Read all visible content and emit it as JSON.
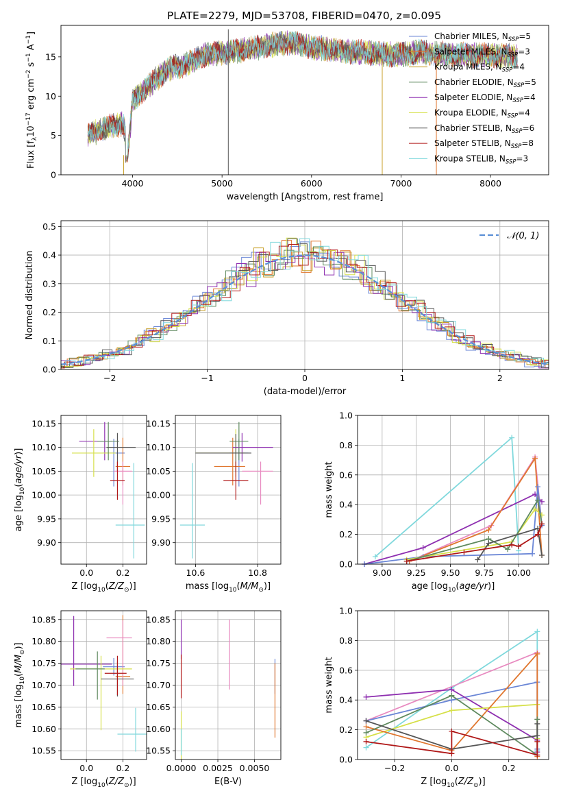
{
  "figure_title": "PLATE=2279, MJD=53708, FIBERID=0470, z=0.095",
  "legend": [
    {
      "prefix": "Chabrier MILES, N",
      "sub": "SSP",
      "suffix": "=5",
      "color": "#6a86d6"
    },
    {
      "prefix": "Salpeter MILES, N",
      "sub": "SSP",
      "suffix": "=3",
      "color": "#e0762e"
    },
    {
      "prefix": "Kroupa MILES, N",
      "sub": "SSP",
      "suffix": "=4",
      "color": "#c8a02a"
    },
    {
      "prefix": "Chabrier ELODIE, N",
      "sub": "SSP",
      "suffix": "=5",
      "color": "#5f8a5f"
    },
    {
      "prefix": "Salpeter ELODIE, N",
      "sub": "SSP",
      "suffix": "=4",
      "color": "#8e2fb0"
    },
    {
      "prefix": "Kroupa ELODIE, N",
      "sub": "SSP",
      "suffix": "=4",
      "color": "#d6e04a"
    },
    {
      "prefix": "Chabrier STELIB, N",
      "sub": "SSP",
      "suffix": "=6",
      "color": "#555555"
    },
    {
      "prefix": "Salpeter STELIB, N",
      "sub": "SSP",
      "suffix": "=8",
      "color": "#b01818"
    },
    {
      "prefix": "Kroupa STELIB, N",
      "sub": "SSP",
      "suffix": "=3",
      "color": "#7fd8dc"
    }
  ],
  "chart_data": [
    {
      "id": "spectrum",
      "type": "line",
      "xlabel": "wavelength [Angstrom, rest frame]",
      "ylabel": "Flux [f_λ 10^-17 erg cm^-2 s^-1 A^-1]",
      "xlim": [
        3200,
        8650
      ],
      "ylim": [
        0,
        19
      ],
      "xticks": [
        4000,
        5000,
        6000,
        7000,
        8000
      ],
      "yticks": [
        0,
        5,
        10,
        15
      ],
      "grid": false,
      "legend_position": "right",
      "continuum": {
        "x": [
          3500,
          3700,
          3900,
          3950,
          4000,
          4200,
          4400,
          4600,
          4800,
          5000,
          5200,
          5400,
          5600,
          5800,
          6000,
          6200,
          6400,
          6600,
          6800,
          7000,
          7200,
          7400,
          7600,
          7800,
          8000,
          8200,
          8300
        ],
        "y": [
          5.0,
          6.0,
          6.5,
          3.0,
          9.5,
          11.5,
          13.5,
          14.0,
          15.2,
          15.5,
          15.8,
          16.2,
          16.6,
          16.8,
          16.2,
          16.0,
          15.7,
          15.6,
          15.3,
          15.3,
          15.6,
          15.4,
          15.3,
          15.2,
          15.2,
          15.1,
          15.0
        ]
      },
      "vertical_lines": [
        {
          "x": 5070,
          "color": "#555555",
          "y": [
            0,
            18.5
          ]
        },
        {
          "x": 6790,
          "color": "#c8a02a",
          "y": [
            0,
            14.8
          ]
        },
        {
          "x": 7395,
          "color": "#e0762e",
          "y": [
            0,
            15.0
          ]
        },
        {
          "x": 3900,
          "color": "#c8a02a",
          "y": [
            0,
            2.5
          ]
        }
      ]
    },
    {
      "id": "residuals",
      "type": "line",
      "xlabel": "(data-model)/error",
      "ylabel": "Normed distribution",
      "xlim": [
        -2.5,
        2.5
      ],
      "ylim": [
        0,
        0.52
      ],
      "xticks": [
        -2,
        -1,
        0,
        1,
        2
      ],
      "yticks": [
        0.0,
        0.1,
        0.2,
        0.3,
        0.4,
        0.5
      ],
      "grid": true,
      "legend": {
        "label": "N(0,1)",
        "position": "top-right",
        "color": "#5a8fd6"
      }
    },
    {
      "id": "age_vs_Z",
      "type": "scatter",
      "xlabel": "Z [log10(Z/Z⊙)]",
      "ylabel": "age  [log10(age/yr)]",
      "xlim": [
        -0.14,
        0.33
      ],
      "ylim": [
        9.855,
        10.167
      ],
      "xticks": [
        0.0,
        0.2
      ],
      "yticks": [
        9.9,
        9.95,
        10.0,
        10.05,
        10.1,
        10.15
      ],
      "grid": true,
      "points": [
        {
          "x": 0.15,
          "y": 10.088,
          "xerr": [
            0.06,
            0.06
          ],
          "yerr": [
            0.07,
            0.03
          ],
          "color": "#6a86d6"
        },
        {
          "x": 0.2,
          "y": 10.06,
          "xerr": [
            0.04,
            0.04
          ],
          "yerr": [
            0.04,
            0.06
          ],
          "color": "#e0762e"
        },
        {
          "x": 0.2,
          "y": 10.05,
          "xerr": [
            0.05,
            0.05
          ],
          "yerr": [
            0.07,
            0.02
          ],
          "color": "#e88ac0"
        },
        {
          "x": 0.1,
          "y": 10.113,
          "xerr": [
            0.14,
            0.04
          ],
          "yerr": [
            0.04,
            0.04
          ],
          "color": "#8e2fb0"
        },
        {
          "x": 0.04,
          "y": 10.088,
          "xerr": [
            0.12,
            0.12
          ],
          "yerr": [
            0.05,
            0.05
          ],
          "color": "#d6e04a"
        },
        {
          "x": 0.12,
          "y": 10.113,
          "xerr": [
            0.06,
            0.06
          ],
          "yerr": [
            0.04,
            0.04
          ],
          "color": "#5f8a5f"
        },
        {
          "x": 0.17,
          "y": 10.1,
          "xerr": [
            0.06,
            0.1
          ],
          "yerr": [
            0.05,
            0.03
          ],
          "color": "#555555"
        },
        {
          "x": 0.17,
          "y": 10.03,
          "xerr": [
            0.04,
            0.04
          ],
          "yerr": [
            0.04,
            0.04
          ],
          "color": "#b01818"
        },
        {
          "x": 0.26,
          "y": 9.937,
          "xerr": [
            0.1,
            0.06
          ],
          "yerr": [
            0.07,
            0.13
          ],
          "color": "#7fd8dc"
        }
      ]
    },
    {
      "id": "age_vs_mass",
      "type": "scatter",
      "xlabel": "mass [log10(M/M⊙)]",
      "ylabel": "",
      "xlim": [
        10.535,
        10.875
      ],
      "ylim": [
        9.855,
        10.167
      ],
      "xticks": [
        10.6,
        10.8
      ],
      "yticks": [
        9.9,
        9.95,
        10.0,
        10.05,
        10.1,
        10.15
      ],
      "grid": true,
      "points": [
        {
          "x": 10.74,
          "y": 10.088,
          "xerr": [
            0.03,
            0.03
          ],
          "yerr": [
            0.07,
            0.03
          ],
          "color": "#6a86d6"
        },
        {
          "x": 10.72,
          "y": 10.06,
          "xerr": [
            0.06,
            0.04
          ],
          "yerr": [
            0.04,
            0.06
          ],
          "color": "#e0762e"
        },
        {
          "x": 10.81,
          "y": 10.05,
          "xerr": [
            0.06,
            0.04
          ],
          "yerr": [
            0.07,
            0.02
          ],
          "color": "#e88ac0"
        },
        {
          "x": 10.75,
          "y": 10.1,
          "xerr": [
            0.03,
            0.1
          ],
          "yerr": [
            0.03,
            0.03
          ],
          "color": "#8e2fb0"
        },
        {
          "x": 10.73,
          "y": 10.088,
          "xerr": [
            0.13,
            0.03
          ],
          "yerr": [
            0.05,
            0.05
          ],
          "color": "#d6e04a"
        },
        {
          "x": 10.74,
          "y": 10.113,
          "xerr": [
            0.03,
            0.03
          ],
          "yerr": [
            0.04,
            0.04
          ],
          "color": "#5f8a5f"
        },
        {
          "x": 10.73,
          "y": 10.088,
          "xerr": [
            0.13,
            0.05
          ],
          "yerr": [
            0.04,
            0.04
          ],
          "color": "#555555"
        },
        {
          "x": 10.73,
          "y": 10.03,
          "xerr": [
            0.04,
            0.04
          ],
          "yerr": [
            0.04,
            0.04
          ],
          "color": "#b01818"
        },
        {
          "x": 10.59,
          "y": 9.937,
          "xerr": [
            0.04,
            0.04
          ],
          "yerr": [
            0.07,
            0.13
          ],
          "color": "#7fd8dc"
        }
      ]
    },
    {
      "id": "weight_vs_age",
      "type": "line",
      "xlabel": "age  [log10(age/yr)]",
      "ylabel": "mass weight",
      "xlim": [
        8.82,
        10.22
      ],
      "ylim": [
        0,
        1.0
      ],
      "xticks": [
        9.0,
        9.25,
        9.5,
        9.75,
        10.0
      ],
      "yticks": [
        0.0,
        0.2,
        0.4,
        0.6,
        0.8,
        1.0
      ],
      "grid": true,
      "series": [
        {
          "color": "#7fd8dc",
          "x": [
            8.95,
            9.95,
            10.0
          ],
          "y": [
            0.05,
            0.85,
            0.09
          ]
        },
        {
          "color": "#8e2fb0",
          "x": [
            8.87,
            9.3,
            10.12,
            10.17
          ],
          "y": [
            0.0,
            0.11,
            0.47,
            0.42
          ]
        },
        {
          "color": "#e88ac0",
          "x": [
            9.2,
            9.8,
            10.12,
            10.17
          ],
          "y": [
            0.02,
            0.26,
            0.72,
            0.27
          ]
        },
        {
          "color": "#e0762e",
          "x": [
            9.2,
            9.78,
            10.12,
            10.17
          ],
          "y": [
            0.02,
            0.23,
            0.71,
            0.06
          ]
        },
        {
          "color": "#6a86d6",
          "x": [
            8.87,
            9.3,
            10.1,
            10.14,
            10.17
          ],
          "y": [
            0.0,
            0.05,
            0.07,
            0.52,
            0.26
          ]
        },
        {
          "color": "#d6e04a",
          "x": [
            9.18,
            9.95,
            10.12,
            10.17
          ],
          "y": [
            0.03,
            0.15,
            0.37,
            0.33
          ]
        },
        {
          "color": "#5f8a5f",
          "x": [
            9.18,
            9.78,
            9.92,
            10.14,
            10.17
          ],
          "y": [
            0.02,
            0.17,
            0.1,
            0.43,
            0.27
          ]
        },
        {
          "color": "#555555",
          "x": [
            9.7,
            9.78,
            10.14,
            10.17
          ],
          "y": [
            0.03,
            0.14,
            0.24,
            0.06
          ]
        },
        {
          "color": "#b01818",
          "x": [
            9.18,
            9.6,
            9.95,
            10.0,
            10.14,
            10.17
          ],
          "y": [
            0.02,
            0.08,
            0.13,
            0.12,
            0.2,
            0.27
          ]
        }
      ]
    },
    {
      "id": "mass_vs_Z",
      "type": "scatter",
      "xlabel": "Z [log10(Z/Z⊙)]",
      "ylabel": "mass [log10(M/M⊙)]",
      "xlim": [
        -0.14,
        0.33
      ],
      "ylim": [
        10.53,
        10.87
      ],
      "xticks": [
        0.0,
        0.2
      ],
      "yticks": [
        10.55,
        10.6,
        10.65,
        10.7,
        10.75,
        10.8,
        10.85
      ],
      "grid": true,
      "points": [
        {
          "x": 0.15,
          "y": 10.742,
          "xerr": [
            0.06,
            0.06
          ],
          "yerr": [
            0.02,
            0.02
          ],
          "color": "#6a86d6"
        },
        {
          "x": 0.2,
          "y": 10.72,
          "xerr": [
            0.04,
            0.04
          ],
          "yerr": [
            0.04,
            0.14
          ],
          "color": "#e0762e"
        },
        {
          "x": 0.2,
          "y": 10.808,
          "xerr": [
            0.09,
            0.05
          ],
          "yerr": [
            0.11,
            0.04
          ],
          "color": "#e88ac0"
        },
        {
          "x": -0.07,
          "y": 10.748,
          "xerr": [
            0.07,
            0.21
          ],
          "yerr": [
            0.05,
            0.11
          ],
          "color": "#8e2fb0"
        },
        {
          "x": 0.08,
          "y": 10.737,
          "xerr": [
            0.17,
            0.17
          ],
          "yerr": [
            0.14,
            0.03
          ],
          "color": "#d6e04a"
        },
        {
          "x": 0.06,
          "y": 10.737,
          "xerr": [
            0.12,
            0.04
          ],
          "yerr": [
            0.07,
            0.04
          ],
          "color": "#5f8a5f"
        },
        {
          "x": 0.17,
          "y": 10.714,
          "xerr": [
            0.09,
            0.09
          ],
          "yerr": [
            0.04,
            0.04
          ],
          "color": "#555555"
        },
        {
          "x": 0.17,
          "y": 10.727,
          "xerr": [
            0.07,
            0.05
          ],
          "yerr": [
            0.05,
            0.04
          ],
          "color": "#b01818"
        },
        {
          "x": 0.27,
          "y": 10.588,
          "xerr": [
            0.1,
            0.06
          ],
          "yerr": [
            0.04,
            0.06
          ],
          "color": "#7fd8dc"
        }
      ]
    },
    {
      "id": "mass_vs_EBV",
      "type": "scatter",
      "xlabel": "E(B-V)",
      "ylabel": "",
      "xlim": [
        -0.0004,
        0.0068
      ],
      "ylim": [
        10.53,
        10.87
      ],
      "xticks": [
        0.0,
        0.0025,
        0.005
      ],
      "xtick_labels": [
        "0.0000",
        "0.0025",
        "0.0050"
      ],
      "yticks": [
        10.55,
        10.6,
        10.65,
        10.7,
        10.75,
        10.8,
        10.85
      ],
      "grid": true,
      "points": [
        {
          "x": 0.0,
          "y": 10.79,
          "xerr": [
            0,
            0
          ],
          "yerr": [
            0.03,
            0.06
          ],
          "color": "#8e2fb0"
        },
        {
          "x": 0.0,
          "y": 10.72,
          "xerr": [
            0,
            0
          ],
          "yerr": [
            0.05,
            0.05
          ],
          "color": "#b01818"
        },
        {
          "x": 0.0,
          "y": 10.62,
          "xerr": [
            0,
            0
          ],
          "yerr": [
            0.09,
            0.02
          ],
          "color": "#d6e04a"
        },
        {
          "x": 0.0,
          "y": 10.57,
          "xerr": [
            0,
            0
          ],
          "yerr": [
            0.03,
            0.03
          ],
          "color": "#7fd8dc"
        },
        {
          "x": 0.0033,
          "y": 10.77,
          "xerr": [
            0,
            0
          ],
          "yerr": [
            0.08,
            0.08
          ],
          "color": "#e88ac0"
        },
        {
          "x": 0.0064,
          "y": 10.72,
          "xerr": [
            0,
            0
          ],
          "yerr": [
            0.04,
            0.04
          ],
          "color": "#6a86d6"
        },
        {
          "x": 0.0064,
          "y": 10.67,
          "xerr": [
            0,
            0
          ],
          "yerr": [
            0.09,
            0.08
          ],
          "color": "#e0762e"
        }
      ]
    },
    {
      "id": "weight_vs_Z",
      "type": "line",
      "xlabel": "Z [log10(Z/Z⊙)]",
      "ylabel": "mass weight",
      "xlim": [
        -0.33,
        0.34
      ],
      "ylim": [
        0,
        1.0
      ],
      "xticks": [
        -0.2,
        0.0,
        0.2
      ],
      "yticks": [
        0.0,
        0.2,
        0.4,
        0.6,
        0.8,
        1.0
      ],
      "grid": true,
      "series": [
        {
          "color": "#7fd8dc",
          "x": [
            -0.3,
            0.0,
            0.3,
            0.3
          ],
          "y": [
            0.08,
            0.48,
            0.86,
            0.06
          ]
        },
        {
          "color": "#e88ac0",
          "x": [
            -0.3,
            0.3,
            0.3
          ],
          "y": [
            0.26,
            0.72,
            0.27
          ]
        },
        {
          "color": "#6a86d6",
          "x": [
            -0.3,
            0.0,
            0.3,
            0.3
          ],
          "y": [
            0.26,
            0.4,
            0.52,
            0.07
          ]
        },
        {
          "color": "#8e2fb0",
          "x": [
            -0.3,
            0.0,
            0.3,
            0.3
          ],
          "y": [
            0.42,
            0.47,
            0.13,
            0.05
          ]
        },
        {
          "color": "#d6e04a",
          "x": [
            -0.3,
            0.0,
            0.3,
            0.3
          ],
          "y": [
            0.15,
            0.33,
            0.37,
            0.14
          ]
        },
        {
          "color": "#e0762e",
          "x": [
            -0.3,
            0.0,
            0.3,
            0.3
          ],
          "y": [
            0.22,
            0.06,
            0.71,
            0.02
          ]
        },
        {
          "color": "#5f8a5f",
          "x": [
            -0.3,
            0.0,
            0.3,
            0.3
          ],
          "y": [
            0.18,
            0.43,
            0.03,
            0.27
          ]
        },
        {
          "color": "#555555",
          "x": [
            -0.3,
            0.0,
            0.3,
            0.3
          ],
          "y": [
            0.26,
            0.07,
            0.16,
            0.24
          ]
        },
        {
          "color": "#b01818",
          "x": [
            -0.3,
            0.0,
            0.0,
            0.3,
            0.3
          ],
          "y": [
            0.12,
            0.04,
            0.19,
            0.03,
            0.12
          ]
        }
      ]
    }
  ]
}
